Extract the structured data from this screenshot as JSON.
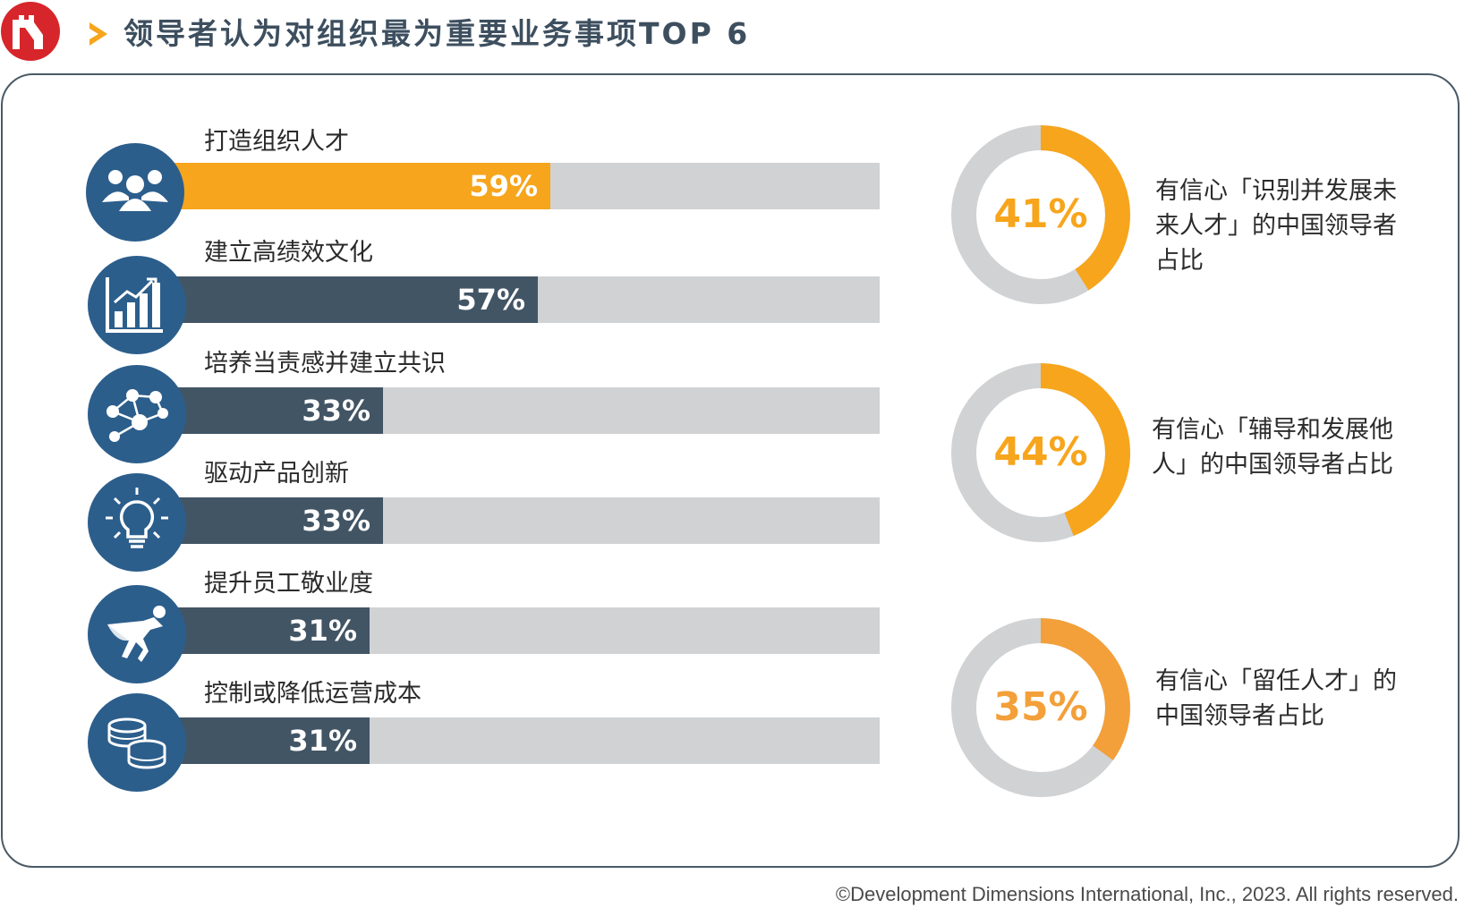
{
  "header": {
    "title": "领导者认为对组织最为重要业务事项TOP 6"
  },
  "colors": {
    "highlight": "#f7a51c",
    "bar_dark": "#425565",
    "track": "#d0d2d4",
    "icon_circle": "#2c5e8c",
    "donut_light_orange": "#f3a03a",
    "donut_gray": "#d0d2d4",
    "logo_red": "#d7262b"
  },
  "chart_data": [
    {
      "type": "bar",
      "orientation": "horizontal",
      "title": "",
      "categories": [
        "打造组织人才",
        "建立高绩效文化",
        "培养当责感并建立共识",
        "驱动产品创新",
        "提升员工敬业度",
        "控制或降低运营成本"
      ],
      "values": [
        59,
        57,
        33,
        33,
        31,
        31
      ],
      "value_labels": [
        "59%",
        "57%",
        "33%",
        "33%",
        "31%",
        "31%"
      ],
      "icons": [
        "people-group-icon",
        "growth-chart-icon",
        "network-people-icon",
        "lightbulb-icon",
        "superhero-icon",
        "coins-icon"
      ],
      "xlim": [
        0,
        100
      ],
      "highlight_index": 0
    },
    {
      "type": "pie",
      "style": "donut",
      "charts": [
        {
          "value": 41,
          "label": "41%",
          "text": "有信心「识别并发展未来人才」的中国领导者占比"
        },
        {
          "value": 44,
          "label": "44%",
          "text": "有信心「辅导和发展他人」的中国领导者占比"
        },
        {
          "value": 35,
          "label": "35%",
          "text": "有信心「留任人才」的中国领导者占比"
        }
      ]
    }
  ],
  "footer": {
    "copyright": "©Development Dimensions International, Inc., 2023. All rights reserved."
  }
}
